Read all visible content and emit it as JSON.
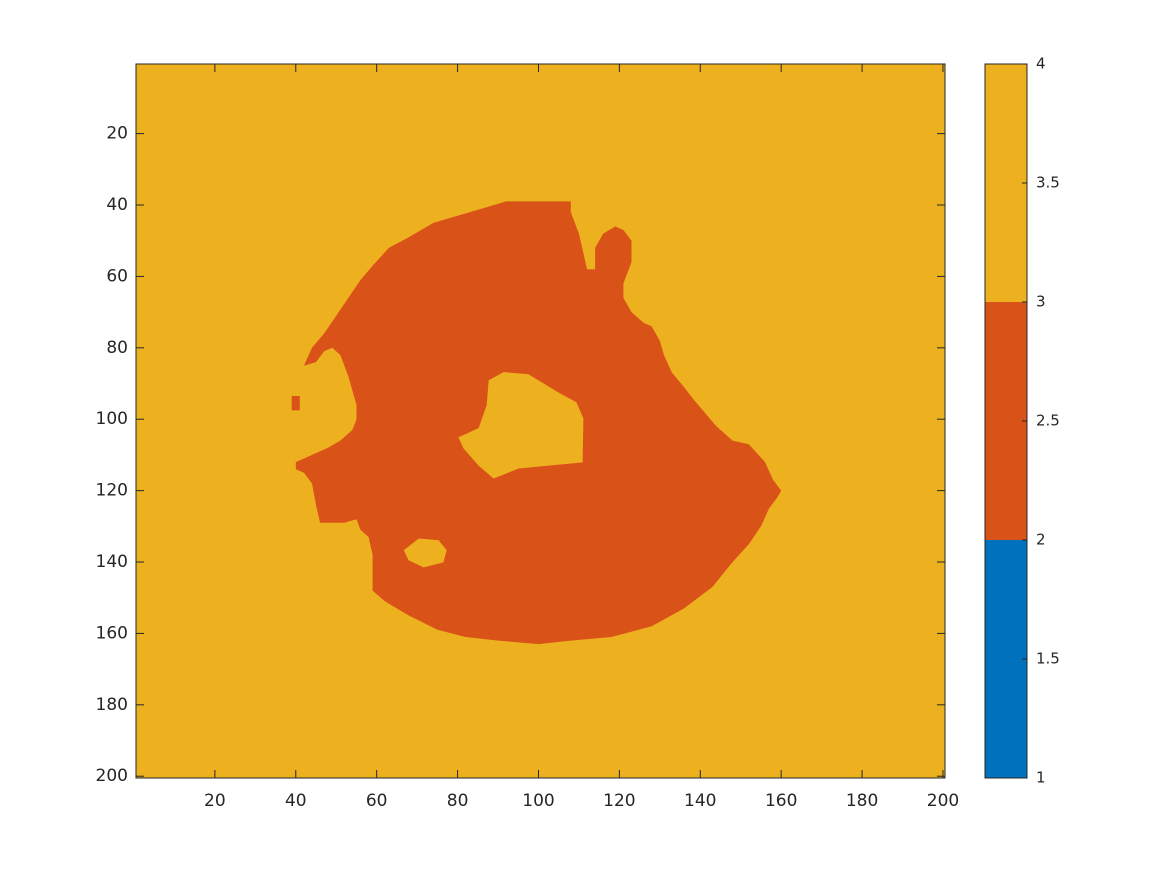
{
  "chart_data": {
    "type": "image",
    "xlim": [
      0.5,
      200.5
    ],
    "ylim": [
      0.5,
      200.5
    ],
    "y_reversed": true,
    "xticks": [
      20,
      40,
      60,
      80,
      100,
      120,
      140,
      160,
      180,
      200
    ],
    "yticks": [
      20,
      40,
      60,
      80,
      100,
      120,
      140,
      160,
      180,
      200
    ],
    "background_value": 3,
    "regions": [
      {
        "value": 2,
        "x": [
          92,
          108,
          108,
          110,
          111,
          112,
          114,
          114,
          116,
          119,
          121,
          123,
          123,
          121,
          121,
          123,
          126,
          128,
          130,
          131,
          133,
          136,
          138,
          141,
          144,
          148,
          152,
          156,
          158,
          160,
          159,
          157,
          155,
          152,
          148,
          143,
          136,
          128,
          118,
          108,
          100,
          90,
          82,
          75,
          68,
          62,
          59,
          59,
          59,
          58,
          56,
          55,
          52,
          46,
          45,
          44,
          42,
          40,
          40,
          44,
          48,
          51,
          54,
          55,
          55,
          54,
          53,
          51,
          49,
          47,
          45,
          42,
          44,
          47,
          50,
          53,
          56,
          59,
          63,
          68,
          74,
          80,
          86
        ],
        "y": [
          39,
          39,
          42,
          48,
          53,
          58,
          58,
          52,
          48,
          46,
          47,
          50,
          56,
          62,
          66,
          70,
          73,
          74,
          78,
          82,
          87,
          91,
          94,
          98,
          102,
          106,
          107,
          112,
          117,
          120,
          122,
          125,
          130,
          135,
          140,
          147,
          153,
          158,
          161,
          162,
          163,
          162,
          161,
          159,
          155,
          151,
          148,
          144,
          138,
          133,
          131,
          128,
          129,
          129,
          124,
          118,
          115,
          114,
          112,
          110,
          108,
          106,
          103,
          100,
          96,
          92,
          88,
          82,
          80,
          81,
          84,
          85,
          80,
          76,
          71,
          66,
          61,
          57,
          52,
          49,
          45,
          43,
          41
        ]
      },
      {
        "value": 3,
        "x": [
          87.7,
          91.4,
          97.5,
          104.9,
          109.4,
          111.1,
          110.9,
          102.5,
          95.1,
          88.9,
          85.2,
          81.5,
          80.2,
          85.2,
          87.2
        ],
        "y": [
          89.1,
          86.8,
          87.4,
          92.5,
          95.3,
          99.8,
          112.1,
          113,
          113.8,
          116.6,
          113,
          108.2,
          105.1,
          102.5,
          96.1
        ]
      },
      {
        "value": 3,
        "x": [
          66.7,
          70.4,
          75.3,
          77.3,
          76.5,
          71.6,
          67.9
        ],
        "y": [
          136.7,
          133.4,
          133.9,
          136.7,
          140.1,
          141.5,
          139.5
        ]
      },
      {
        "value": 2,
        "x": [
          39,
          41,
          41,
          39
        ],
        "y": [
          93.5,
          93.5,
          97.5,
          97.5
        ]
      }
    ],
    "colorbar": {
      "clim": [
        1,
        4
      ],
      "ticks": [
        1,
        1.5,
        2,
        2.5,
        3,
        3.5,
        4
      ],
      "colors": [
        "#0072bd",
        "#d95319",
        "#edb120"
      ]
    }
  }
}
